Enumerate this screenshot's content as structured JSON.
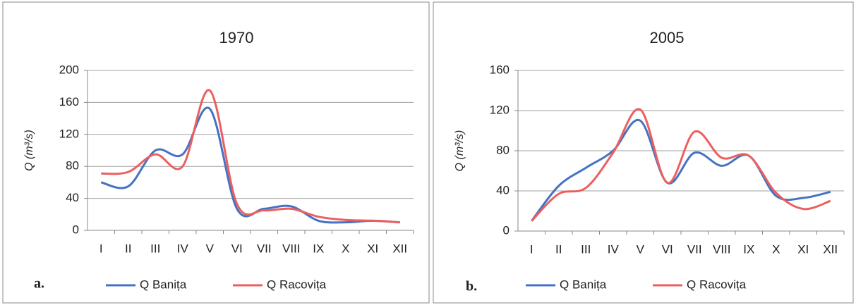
{
  "chart_data": [
    {
      "type": "line",
      "title": "1970",
      "panel_label": "a.",
      "y_label": "Q (m³/s)",
      "categories": [
        "I",
        "II",
        "III",
        "IV",
        "V",
        "VI",
        "VII",
        "VIII",
        "IX",
        "X",
        "XI",
        "XII"
      ],
      "series": [
        {
          "name": "Q Banița",
          "color": "#4472c4",
          "values": [
            60,
            55,
            100,
            95,
            152,
            27,
            27,
            30,
            12,
            10,
            12,
            10
          ]
        },
        {
          "name": "Q Racovița",
          "color": "#ec5f5f",
          "values": [
            71,
            73,
            95,
            80,
            175,
            33,
            25,
            27,
            17,
            13,
            12,
            10
          ]
        }
      ],
      "ylim": [
        0,
        200
      ],
      "yticks": [
        0,
        40,
        80,
        120,
        160,
        200
      ],
      "grid": true,
      "legend": "bottom"
    },
    {
      "type": "line",
      "title": "2005",
      "panel_label": "b.",
      "y_label": "Q (m³/s)",
      "categories": [
        "I",
        "II",
        "III",
        "IV",
        "V",
        "VI",
        "VII",
        "VIII",
        "IX",
        "X",
        "XI",
        "XII"
      ],
      "series": [
        {
          "name": "Q Banița",
          "color": "#4472c4",
          "values": [
            10,
            45,
            63,
            80,
            110,
            48,
            78,
            65,
            75,
            35,
            33,
            39
          ]
        },
        {
          "name": "Q Racovița",
          "color": "#ec5f5f",
          "values": [
            10,
            37,
            43,
            78,
            121,
            48,
            99,
            73,
            75,
            38,
            22,
            30
          ]
        }
      ],
      "ylim": [
        0,
        160
      ],
      "yticks": [
        0,
        40,
        80,
        120,
        160
      ],
      "grid": true,
      "legend": "bottom"
    }
  ]
}
